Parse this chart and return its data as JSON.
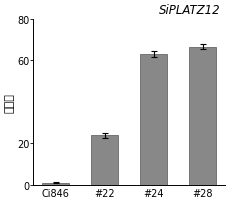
{
  "categories": [
    "Ci846",
    "#22",
    "#24",
    "#28"
  ],
  "values": [
    1.2,
    24.0,
    63.0,
    66.5
  ],
  "errors": [
    0.3,
    1.2,
    1.5,
    1.2
  ],
  "bar_color": "#888888",
  "bar_edge_color": "#555555",
  "title": "SiPLATZ12",
  "ylabel": "表达量",
  "ylim": [
    0,
    80
  ],
  "yticks": [
    0,
    20,
    60,
    80
  ],
  "bar_width": 0.55,
  "figsize": [
    2.29,
    2.03
  ],
  "dpi": 100
}
